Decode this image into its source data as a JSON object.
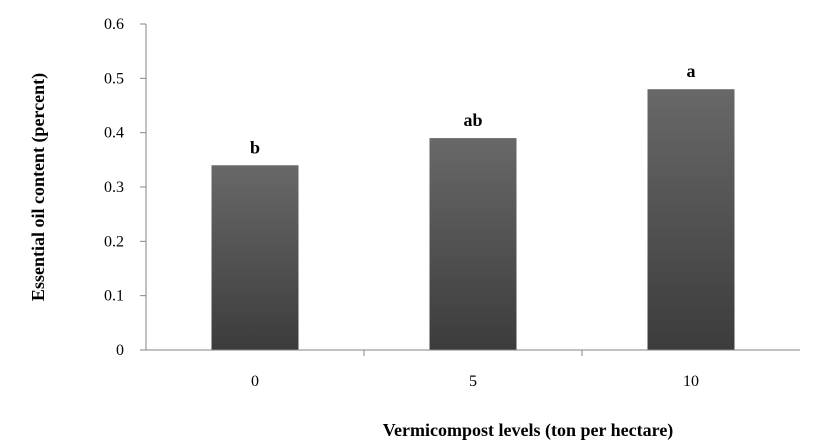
{
  "chart_data": {
    "type": "bar",
    "title": "",
    "xlabel": "Vermicompost levels (ton per hectare)",
    "ylabel": "Essential oil content (percent)",
    "categories": [
      "0",
      "5",
      "10"
    ],
    "values": [
      0.34,
      0.39,
      0.48
    ],
    "data_labels": [
      "b",
      "ab",
      "a"
    ],
    "ylim": [
      0,
      0.6
    ],
    "yticks": [
      "0",
      "0.1",
      "0.2",
      "0.3",
      "0.4",
      "0.5",
      "0.6"
    ],
    "grid": false,
    "legend": "none",
    "bar_gradient": [
      "#686868",
      "#3c3c3c"
    ],
    "axis_color": "#868686"
  }
}
